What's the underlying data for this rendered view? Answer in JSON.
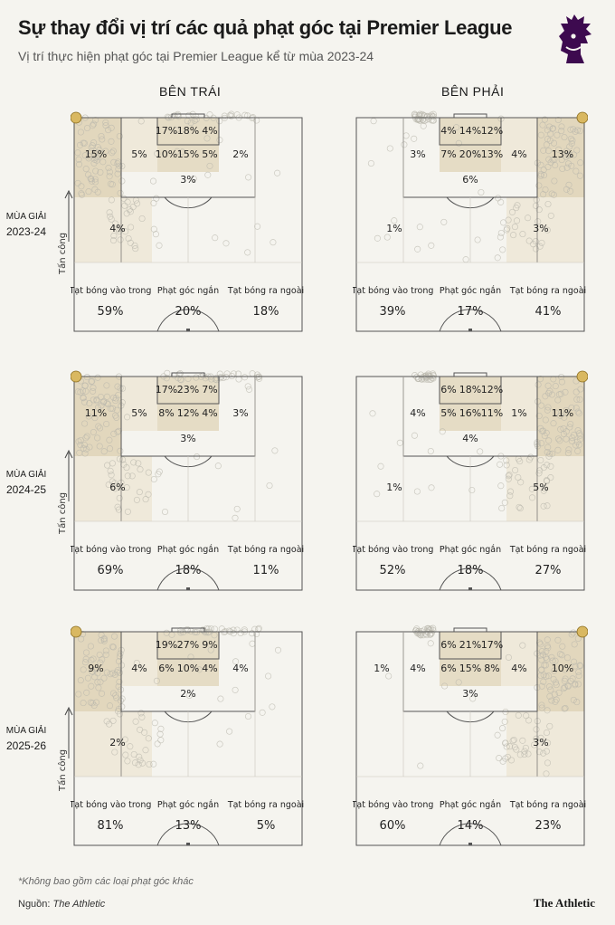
{
  "title": "Sự thay đổi vị trí các quả phạt góc tại Premier League",
  "subtitle": "Vị trí thực hiện phạt góc tại Premier League kể từ mùa 2023-24",
  "columns": {
    "left": "BÊN TRÁI",
    "right": "BÊN PHẢI"
  },
  "axis_label": "Tấn công",
  "season_label": "MÙA GIẢI",
  "footnote": "*Không bao gồm các loại phạt góc khác",
  "source_label": "Nguồn:",
  "source_name": "The Athletic",
  "brand": "The Athletic",
  "colors": {
    "background": "#f5f4ef",
    "zone_dark": "#e2d7bd",
    "zone_light": "#efe9da",
    "corner_flag": "#d9b861",
    "line": "#555555"
  },
  "chart_data": {
    "type": "heatmap",
    "categories": [
      "Tạt bóng vào trong",
      "Phạt góc ngắn",
      "Tạt bóng ra ngoài"
    ],
    "panels": [
      {
        "season": "2023-24",
        "side": "left",
        "zones": {
          "box_top": [
            "17%",
            "18%",
            "4%"
          ],
          "box_mid": [
            "10%",
            "15%",
            "5%"
          ],
          "six_yard": "3%",
          "wide_near": "15%",
          "wide_inner": "5%",
          "wide_far": "2%",
          "deep": "4%",
          "far_box_outer": "",
          "deep_far": ""
        },
        "split": [
          "59%",
          "20%",
          "18%"
        ]
      },
      {
        "season": "2023-24",
        "side": "right",
        "zones": {
          "box_top": [
            "4%",
            "14%",
            "12%"
          ],
          "box_mid": [
            "7%",
            "20%",
            "13%"
          ],
          "six_yard": "6%",
          "wide_near": "13%",
          "wide_inner": "4%",
          "wide_far": "3%",
          "deep": "3%",
          "far_box_outer": "",
          "deep_far": "1%"
        },
        "split": [
          "39%",
          "17%",
          "41%"
        ]
      },
      {
        "season": "2024-25",
        "side": "left",
        "zones": {
          "box_top": [
            "17%",
            "23%",
            "7%"
          ],
          "box_mid": [
            "8%",
            "12%",
            "4%"
          ],
          "six_yard": "3%",
          "wide_near": "11%",
          "wide_inner": "5%",
          "wide_far": "3%",
          "deep": "6%",
          "far_box_outer": "",
          "deep_far": ""
        },
        "split": [
          "69%",
          "18%",
          "11%"
        ]
      },
      {
        "season": "2024-25",
        "side": "right",
        "zones": {
          "box_top": [
            "6%",
            "18%",
            "12%"
          ],
          "box_mid": [
            "5%",
            "16%",
            "11%"
          ],
          "six_yard": "4%",
          "wide_near": "11%",
          "wide_inner": "1%",
          "wide_far": "4%",
          "deep": "5%",
          "far_box_outer": "",
          "deep_far": "1%"
        },
        "split": [
          "52%",
          "18%",
          "27%"
        ]
      },
      {
        "season": "2025-26",
        "side": "left",
        "zones": {
          "box_top": [
            "19%",
            "27%",
            "9%"
          ],
          "box_mid": [
            "6%",
            "10%",
            "4%"
          ],
          "six_yard": "2%",
          "wide_near": "9%",
          "wide_inner": "4%",
          "wide_far": "4%",
          "deep": "2%",
          "far_box_outer": "",
          "deep_far": ""
        },
        "split": [
          "81%",
          "13%",
          "5%"
        ]
      },
      {
        "season": "2025-26",
        "side": "right",
        "zones": {
          "box_top": [
            "6%",
            "21%",
            "17%"
          ],
          "box_mid": [
            "6%",
            "15%",
            "8%"
          ],
          "six_yard": "3%",
          "wide_near": "10%",
          "wide_inner": "4%",
          "wide_far": "4%",
          "deep": "3%",
          "far_box_outer": "1%",
          "deep_far": ""
        },
        "split": [
          "60%",
          "14%",
          "23%"
        ]
      }
    ]
  }
}
